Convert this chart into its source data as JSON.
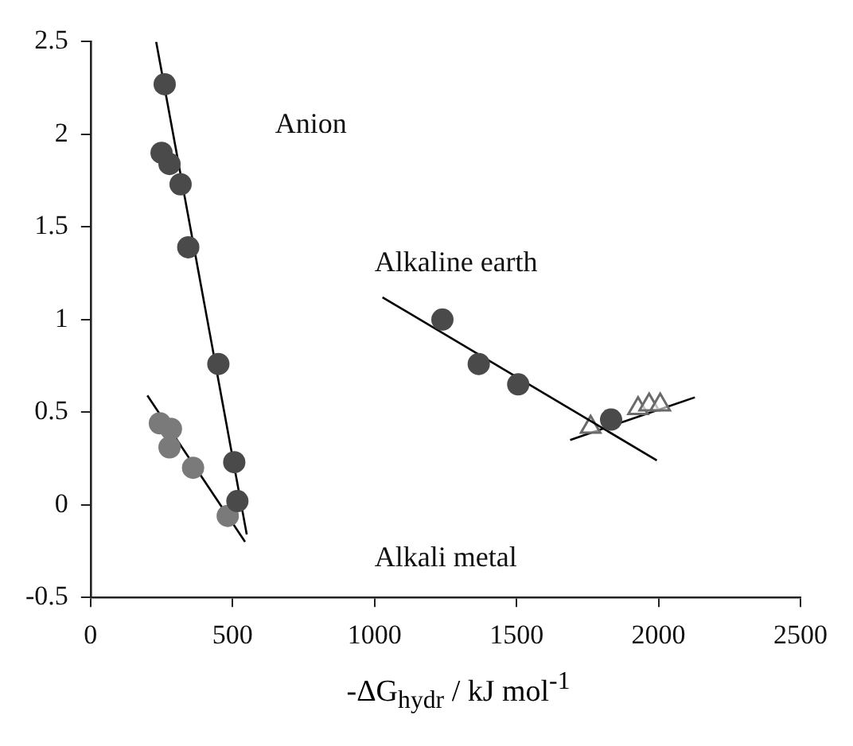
{
  "chart_data": {
    "type": "scatter",
    "xlabel": "-ΔG$_{hydr}$ / kJ mol$^{-1}$",
    "xlim": [
      0,
      2500
    ],
    "xticks": [
      0,
      500,
      1000,
      1500,
      2000,
      2500
    ],
    "ylim": [
      -0.5,
      2.5
    ],
    "yticks": [
      -0.5,
      0,
      0.5,
      1,
      1.5,
      2,
      2.5
    ],
    "grid": false,
    "legend": false,
    "series": [
      {
        "marker": "circle",
        "color": "#4a4a4a",
        "x": [
          261,
          250,
          278,
          317,
          344,
          450,
          506,
          517
        ],
        "values": [
          2.27,
          1.9,
          1.84,
          1.73,
          1.39,
          0.76,
          0.23,
          0.02
        ]
      },
      {
        "type": "line",
        "marker": "none",
        "color": "#000000",
        "x": [
          231,
          550
        ],
        "values": [
          2.5,
          -0.16
        ]
      },
      {
        "marker": "circle",
        "color": "#7a7a7a",
        "x": [
          244,
          283,
          278,
          361,
          483
        ],
        "values": [
          0.44,
          0.41,
          0.31,
          0.2,
          -0.06
        ]
      },
      {
        "type": "line",
        "marker": "none",
        "color": "#000000",
        "x": [
          200,
          544
        ],
        "values": [
          0.59,
          -0.2
        ]
      },
      {
        "marker": "circle",
        "color": "#4a4a4a",
        "x": [
          1239,
          1367,
          1506,
          1833
        ],
        "values": [
          1.0,
          0.76,
          0.65,
          0.46
        ]
      },
      {
        "type": "line",
        "marker": "none",
        "color": "#000000",
        "x": [
          1028,
          1994
        ],
        "values": [
          1.12,
          0.24
        ]
      },
      {
        "marker": "triangle",
        "color": "#6a6a6a",
        "x": [
          1761,
          1928,
          1967,
          2006
        ],
        "values": [
          0.42,
          0.52,
          0.54,
          0.54
        ]
      },
      {
        "type": "line",
        "marker": "none",
        "color": "#000000",
        "x": [
          1689,
          2128
        ],
        "values": [
          0.35,
          0.58
        ]
      }
    ],
    "annotations": [
      "Anion",
      "Alkaline earth",
      "Alkali metal"
    ]
  }
}
